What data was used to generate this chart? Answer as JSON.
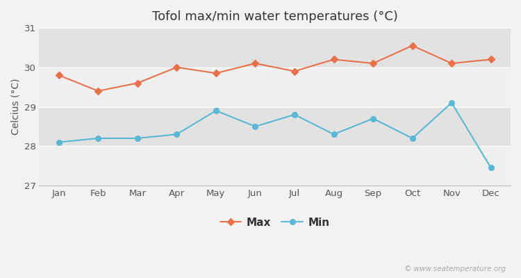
{
  "title": "Tofol max/min water temperatures (°C)",
  "ylabel": "Celcius (°C)",
  "months": [
    "Jan",
    "Feb",
    "Mar",
    "Apr",
    "May",
    "Jun",
    "Jul",
    "Aug",
    "Sep",
    "Oct",
    "Nov",
    "Dec"
  ],
  "max_temps": [
    29.8,
    29.4,
    29.6,
    30.0,
    29.85,
    30.1,
    29.9,
    30.2,
    30.1,
    30.55,
    30.1,
    30.2
  ],
  "min_temps": [
    28.1,
    28.2,
    28.2,
    28.3,
    28.9,
    28.5,
    28.8,
    28.3,
    28.7,
    28.2,
    29.1,
    27.45
  ],
  "max_color": "#e8714a",
  "min_color": "#5ab8d4",
  "ylim": [
    27,
    31
  ],
  "yticks": [
    27,
    28,
    29,
    30,
    31
  ],
  "background_color": "#f2f2f2",
  "band_light": "#efefef",
  "band_dark": "#e2e2e2",
  "title_fontsize": 13,
  "axis_label_fontsize": 10,
  "tick_fontsize": 9.5,
  "legend_labels": [
    "Max",
    "Min"
  ],
  "watermark": "© www.seatemperature.org"
}
